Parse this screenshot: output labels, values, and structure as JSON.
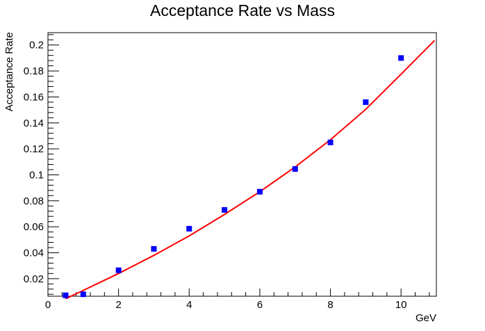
{
  "chart_data": {
    "type": "scatter",
    "title": "Acceptance Rate vs Mass",
    "xlabel": "GeV",
    "ylabel": "Acceptance Rate",
    "xlim": [
      0,
      11
    ],
    "ylim": [
      0.0065,
      0.2095
    ],
    "x_ticks": [
      0,
      2,
      4,
      6,
      8,
      10
    ],
    "x_tick_labels": [
      "0",
      "2",
      "4",
      "6",
      "8",
      "10"
    ],
    "y_ticks": [
      0.02,
      0.04,
      0.06,
      0.08,
      0.1,
      0.12,
      0.14,
      0.16,
      0.18,
      0.2
    ],
    "y_tick_labels": [
      "0.02",
      "0.04",
      "0.06",
      "0.08",
      "0.1",
      "0.12",
      "0.14",
      "0.16",
      "0.18",
      "0.2"
    ],
    "grid": false,
    "series": [
      {
        "kind": "points",
        "color": "#0000ff",
        "marker": "square",
        "x": [
          0.5,
          1,
          2,
          3,
          4,
          5,
          6,
          7,
          8,
          9,
          10
        ],
        "y": [
          0.0072,
          0.008,
          0.0265,
          0.043,
          0.0585,
          0.073,
          0.087,
          0.1045,
          0.125,
          0.156,
          0.19
        ]
      },
      {
        "kind": "fit-line",
        "color": "#ff0000",
        "x": [
          0.5,
          1,
          2,
          3,
          4,
          5,
          6,
          7,
          8,
          9,
          10,
          10.95
        ],
        "y": [
          0.0045,
          0.011,
          0.024,
          0.038,
          0.053,
          0.0695,
          0.087,
          0.106,
          0.127,
          0.1505,
          0.1775,
          0.2035
        ]
      }
    ]
  }
}
